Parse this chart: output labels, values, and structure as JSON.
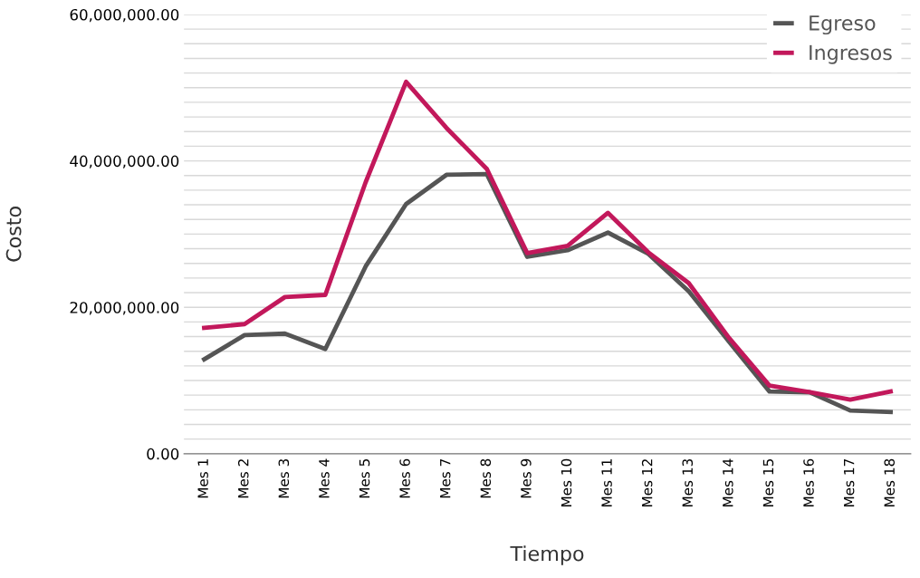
{
  "chart_data": {
    "type": "line",
    "xlabel": "Tiempo",
    "ylabel": "Costo",
    "categories": [
      "Mes 1",
      "Mes 2",
      "Mes 3",
      "Mes 4",
      "Mes 5",
      "Mes 6",
      "Mes 7",
      "Mes 8",
      "Mes 9",
      "Mes 10",
      "Mes 11",
      "Mes 12",
      "Mes 13",
      "Mes 14",
      "Mes 15",
      "Mes 16",
      "Mes 17",
      "Mes 18"
    ],
    "series": [
      {
        "name": "Egreso",
        "color": "#555555",
        "values": [
          12900000,
          16200000,
          16400000,
          14300000,
          25600000,
          34100000,
          38100000,
          38200000,
          26900000,
          27800000,
          30200000,
          27300000,
          22200000,
          15300000,
          8500000,
          8400000,
          5900000,
          5700000
        ]
      },
      {
        "name": "Ingresos",
        "color": "#c2185b",
        "values": [
          17200000,
          17700000,
          21400000,
          21700000,
          37100000,
          50800000,
          44500000,
          38900000,
          27400000,
          28400000,
          32900000,
          27500000,
          23300000,
          15800000,
          9300000,
          8400000,
          7400000,
          8500000
        ]
      }
    ],
    "ylim": [
      0,
      60000000
    ],
    "yticks": [
      {
        "value": 0,
        "label": "0.00"
      },
      {
        "value": 2000000,
        "label": null
      },
      {
        "value": 4000000,
        "label": null
      },
      {
        "value": 6000000,
        "label": null
      },
      {
        "value": 8000000,
        "label": null
      },
      {
        "value": 10000000,
        "label": null
      },
      {
        "value": 12000000,
        "label": null
      },
      {
        "value": 14000000,
        "label": null
      },
      {
        "value": 16000000,
        "label": null
      },
      {
        "value": 18000000,
        "label": null
      },
      {
        "value": 20000000,
        "label": "20,000,000.00"
      },
      {
        "value": 22000000,
        "label": null
      },
      {
        "value": 24000000,
        "label": null
      },
      {
        "value": 26000000,
        "label": null
      },
      {
        "value": 28000000,
        "label": null
      },
      {
        "value": 30000000,
        "label": null
      },
      {
        "value": 32000000,
        "label": null
      },
      {
        "value": 34000000,
        "label": null
      },
      {
        "value": 36000000,
        "label": null
      },
      {
        "value": 38000000,
        "label": null
      },
      {
        "value": 40000000,
        "label": "40,000,000.00"
      },
      {
        "value": 42000000,
        "label": null
      },
      {
        "value": 44000000,
        "label": null
      },
      {
        "value": 46000000,
        "label": null
      },
      {
        "value": 48000000,
        "label": null
      },
      {
        "value": 50000000,
        "label": null
      },
      {
        "value": 52000000,
        "label": null
      },
      {
        "value": 54000000,
        "label": null
      },
      {
        "value": 56000000,
        "label": null
      },
      {
        "value": 58000000,
        "label": null
      },
      {
        "value": 60000000,
        "label": "60,000,000.00"
      }
    ],
    "grid": "y",
    "legend": "top right",
    "marker": "none",
    "line_style": "solid"
  }
}
